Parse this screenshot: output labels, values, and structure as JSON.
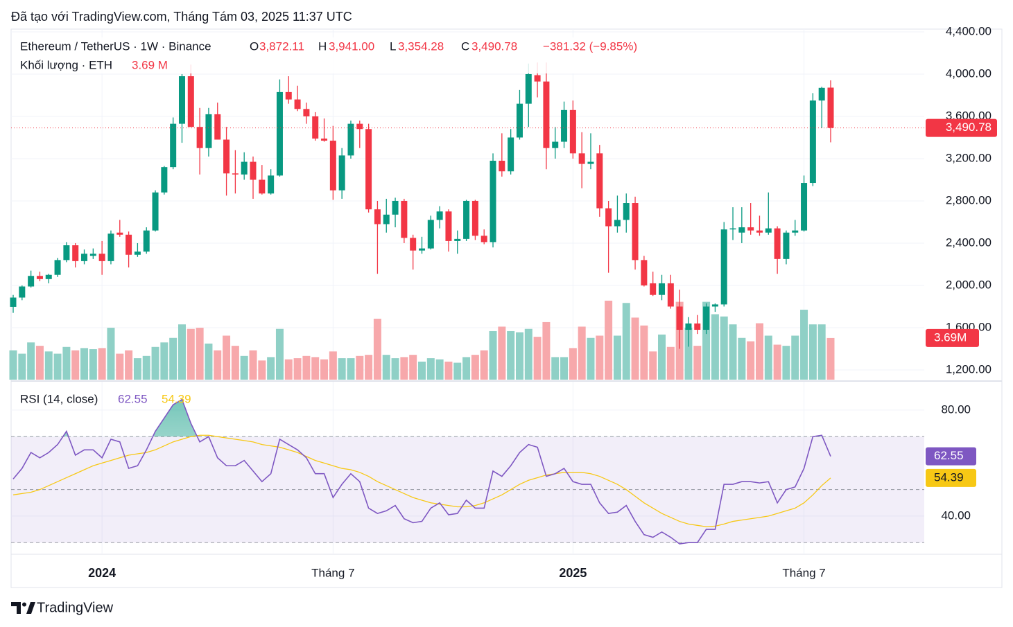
{
  "caption": "Đã tạo với TradingView.com, Tháng Tám 03, 2025 11:37 UTC",
  "brand": "TradingView",
  "chart_data": [
    {
      "type": "candlestick",
      "title": "Ethereum / TetherUS · 1W · Binance",
      "legend": {
        "ohlc": [
          {
            "label": "O",
            "value": "3,872.11"
          },
          {
            "label": "H",
            "value": "3,941.00"
          },
          {
            "label": "L",
            "value": "3,354.28"
          },
          {
            "label": "C",
            "value": "3,490.78"
          }
        ],
        "change": "−381.32 (−9.85%)",
        "volume_title": "Khối lượng · ETH",
        "volume_value": "3.69 M"
      },
      "last_price_label": "3,490.78",
      "volume_tag_label": "3.69M",
      "categories": [
        null,
        null,
        null,
        null,
        null,
        null,
        null,
        null,
        null,
        null,
        "2024",
        null,
        null,
        null,
        null,
        null,
        null,
        null,
        null,
        null,
        null,
        null,
        null,
        null,
        null,
        null,
        null,
        null,
        null,
        null,
        null,
        null,
        null,
        null,
        null,
        null,
        "Tháng 7",
        null,
        null,
        null,
        null,
        null,
        null,
        null,
        null,
        null,
        null,
        null,
        null,
        null,
        null,
        null,
        null,
        null,
        null,
        null,
        null,
        null,
        null,
        null,
        null,
        null,
        null,
        "2025",
        null,
        null,
        null,
        null,
        null,
        null,
        null,
        null,
        null,
        null,
        null,
        null,
        null,
        null,
        null,
        null,
        null,
        null,
        null,
        null,
        null,
        null,
        null,
        null,
        null,
        "Tháng 7",
        null,
        null,
        null
      ],
      "open": [
        1797,
        1885,
        1990,
        2090,
        2060,
        2100,
        2240,
        2380,
        2230,
        2280,
        2300,
        2230,
        2500,
        2480,
        2290,
        2320,
        2520,
        2880,
        3120,
        3530,
        3980,
        3500,
        3300,
        3620,
        3380,
        3060,
        3050,
        3170,
        3000,
        2870,
        3040,
        3830,
        3760,
        3670,
        3600,
        3390,
        3370,
        2900,
        3230,
        3530,
        3480,
        2720,
        2580,
        2670,
        2800,
        2450,
        2330,
        2350,
        2620,
        2700,
        2420,
        2440,
        2800,
        2470,
        2410,
        3180,
        3080,
        3400,
        3720,
        3990,
        3930,
        3300,
        3360,
        3660,
        3250,
        3150,
        3250,
        2730,
        2560,
        2620,
        2780,
        2240,
        2020,
        1910,
        2020,
        1800,
        1580,
        1640,
        1580,
        1800,
        1820,
        2530,
        2500,
        2550,
        2520,
        2500,
        2540,
        2250,
        2500,
        2520,
        2970,
        3750,
        3872.11
      ],
      "high": [
        1910,
        2000,
        2140,
        2130,
        2110,
        2260,
        2410,
        2400,
        2340,
        2350,
        2420,
        2520,
        2620,
        2510,
        2400,
        2550,
        2900,
        3130,
        3590,
        4000,
        4090,
        3680,
        3680,
        3730,
        3500,
        3280,
        3260,
        3220,
        3140,
        3100,
        3950,
        3980,
        3890,
        3730,
        3640,
        3580,
        3510,
        3300,
        3560,
        3560,
        3530,
        2800,
        2820,
        2830,
        2820,
        2480,
        2460,
        2660,
        2750,
        2720,
        2520,
        2810,
        2810,
        2530,
        3250,
        3440,
        3480,
        3850,
        4100,
        4110,
        4110,
        3500,
        3740,
        3750,
        3450,
        3440,
        3330,
        2800,
        2850,
        2870,
        2840,
        2280,
        2130,
        2100,
        2100,
        1960,
        1700,
        1720,
        1830,
        1830,
        2600,
        2740,
        2740,
        2780,
        2660,
        2880,
        2560,
        2520,
        2620,
        3040,
        3820,
        3880,
        3941
      ],
      "low": [
        1740,
        1860,
        1980,
        2040,
        2020,
        2080,
        2220,
        2170,
        2200,
        2250,
        2100,
        2200,
        2460,
        2170,
        2270,
        2300,
        2510,
        2860,
        3100,
        3350,
        3500,
        3050,
        3220,
        3390,
        2850,
        2870,
        3000,
        2820,
        2860,
        2860,
        3030,
        3720,
        3650,
        3530,
        3370,
        3360,
        2810,
        2820,
        3200,
        3300,
        2690,
        2110,
        2500,
        2550,
        2400,
        2150,
        2300,
        2340,
        2540,
        2320,
        2300,
        2420,
        2430,
        2390,
        2360,
        3030,
        3050,
        3380,
        3500,
        3780,
        3100,
        3200,
        3300,
        3200,
        2920,
        3100,
        2650,
        2120,
        2500,
        2500,
        2150,
        1990,
        1900,
        1860,
        1780,
        1400,
        1420,
        1540,
        1540,
        1750,
        1800,
        2430,
        2400,
        2480,
        2470,
        2480,
        2110,
        2200,
        2470,
        2510,
        2940,
        3490,
        3354.28
      ],
      "close": [
        1885,
        1990,
        2090,
        2060,
        2100,
        2240,
        2380,
        2230,
        2300,
        2300,
        2230,
        2490,
        2480,
        2290,
        2320,
        2520,
        2880,
        3120,
        3530,
        3980,
        3500,
        3300,
        3620,
        3380,
        3060,
        3050,
        3170,
        3000,
        2870,
        3040,
        3830,
        3760,
        3670,
        3600,
        3390,
        3370,
        2900,
        3230,
        3530,
        3480,
        2720,
        2580,
        2670,
        2800,
        2450,
        2330,
        2350,
        2620,
        2700,
        2420,
        2440,
        2800,
        2470,
        2410,
        3180,
        3080,
        3400,
        3720,
        4000,
        3930,
        3300,
        3360,
        3660,
        3250,
        3150,
        3170,
        2730,
        2560,
        2620,
        2780,
        2240,
        2000,
        1910,
        2020,
        1800,
        1580,
        1640,
        1580,
        1800,
        1820,
        2530,
        2540,
        2550,
        2520,
        2500,
        2540,
        2250,
        2500,
        2520,
        2970,
        3750,
        3870,
        3490.78
      ],
      "volume": [
        2.6,
        2.3,
        3.3,
        3.0,
        2.5,
        2.3,
        2.9,
        2.6,
        2.8,
        2.7,
        2.8,
        4.6,
        2.3,
        2.6,
        1.9,
        2.1,
        2.9,
        3.3,
        3.7,
        4.9,
        4.5,
        4.6,
        3.2,
        2.6,
        3.9,
        3.0,
        2.1,
        2.6,
        1.7,
        2.0,
        4.5,
        1.8,
        1.9,
        2.1,
        2.0,
        1.8,
        2.5,
        1.9,
        1.9,
        2.1,
        2.2,
        5.4,
        2.2,
        1.9,
        2.0,
        2.2,
        1.6,
        1.9,
        1.8,
        1.6,
        1.5,
        2.0,
        2.2,
        2.6,
        4.3,
        4.7,
        4.3,
        4.2,
        4.5,
        3.8,
        5.1,
        2.0,
        2.0,
        2.8,
        4.7,
        3.7,
        3.9,
        7.0,
        3.9,
        6.8,
        5.5,
        4.8,
        2.5,
        4.0,
        2.9,
        6.9,
        4.6,
        3.0,
        6.9,
        5.8,
        5.6,
        4.9,
        3.7,
        3.4,
        5.0,
        3.9,
        3.1,
        3.0,
        3.9,
        6.2,
        4.9,
        4.9,
        3.69
      ],
      "up_color": "#089981",
      "down_color": "#f23645",
      "volume_up_color": "#8fd0c6",
      "volume_down_color": "#f7a8ab",
      "ylim": [
        1108,
        4426
      ],
      "yticks": [
        {
          "value": 1200,
          "label": "1,200.00"
        },
        {
          "value": 1600,
          "label": "1,600.00"
        },
        {
          "value": 2000,
          "label": "2,000.00"
        },
        {
          "value": 2400,
          "label": "2,400.00"
        },
        {
          "value": 2800,
          "label": "2,800.00"
        },
        {
          "value": 3200,
          "label": "3,200.00"
        },
        {
          "value": 3600,
          "label": "3,600.00"
        },
        {
          "value": 4000,
          "label": "4,000.00"
        },
        {
          "value": 4400,
          "label": "4,400.00"
        }
      ],
      "grid": true
    },
    {
      "type": "line",
      "title": "RSI (14, close)",
      "series": [
        {
          "color": "#7e57c2",
          "values": [
            54,
            58,
            64,
            62,
            64,
            67,
            72,
            63,
            65,
            65,
            62,
            69,
            68,
            58,
            59,
            65,
            72,
            77,
            82,
            84,
            75,
            68,
            70,
            62,
            59,
            59,
            61,
            57,
            53,
            56,
            69,
            67,
            65,
            62,
            56,
            56,
            47,
            52,
            56,
            53,
            43,
            41,
            42,
            44,
            39,
            37.5,
            38,
            43,
            45,
            40.5,
            41,
            46,
            43,
            43,
            57,
            55,
            59,
            64,
            67,
            66,
            55,
            56,
            58,
            53,
            52,
            52,
            45,
            41,
            41.5,
            44,
            38,
            33,
            32,
            34,
            32,
            29.5,
            30,
            30,
            35,
            35,
            52,
            52,
            53,
            53,
            52.5,
            53,
            45,
            50,
            51,
            58,
            70,
            70.5,
            62.55
          ]
        },
        {
          "color": "#f7c815",
          "values": [
            48,
            48.5,
            49,
            50,
            51.5,
            53,
            54.5,
            56,
            57.5,
            59,
            60,
            61,
            62,
            63,
            63.5,
            64,
            65,
            66.5,
            68,
            69,
            70,
            70.5,
            70.5,
            70,
            69.5,
            69,
            68.5,
            68,
            67,
            66.5,
            66,
            65,
            64,
            62.5,
            61,
            60,
            59,
            58,
            57.5,
            56.5,
            55,
            53,
            51.5,
            50,
            48.5,
            47,
            46,
            45,
            44.5,
            44,
            43.5,
            43.5,
            44,
            45,
            46.5,
            48,
            50,
            52,
            53.5,
            54.5,
            55.5,
            56,
            56.5,
            56.5,
            56.5,
            56,
            55,
            53.5,
            52,
            50,
            47.5,
            45,
            43,
            41,
            39.5,
            38,
            37,
            36.5,
            36,
            36.2,
            37,
            38,
            38.5,
            39,
            39.5,
            40,
            41,
            42,
            43,
            45,
            48,
            51.5,
            54.39
          ]
        }
      ],
      "levels": {
        "upper": 70,
        "middle": 50,
        "lower": 30
      },
      "band_color": "#7e57c2",
      "ylim": [
        25.6,
        90.7
      ],
      "yticks": [
        {
          "value": 40,
          "label": "40.00"
        },
        {
          "value": 80,
          "label": "80.00"
        }
      ],
      "grid": true
    }
  ]
}
